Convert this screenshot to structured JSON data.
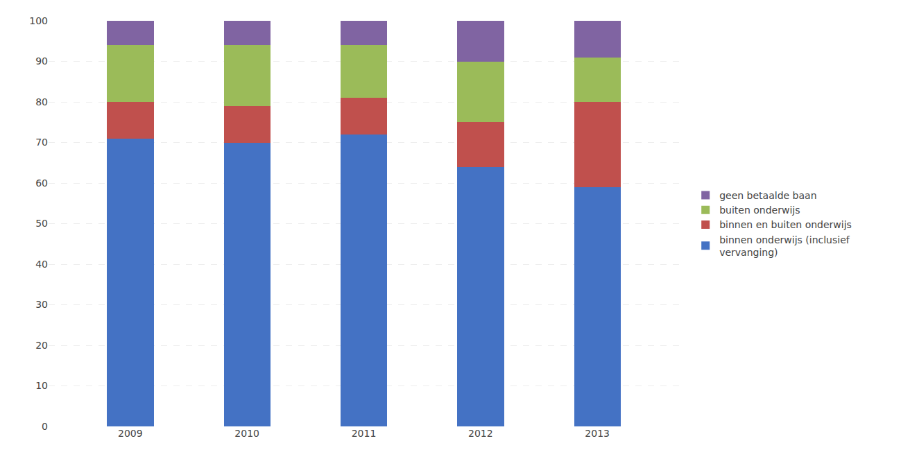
{
  "chart_data": {
    "type": "bar",
    "stacked": true,
    "categories": [
      "2009",
      "2010",
      "2011",
      "2012",
      "2013"
    ],
    "series": [
      {
        "name": "binnen onderwijs (inclusief\nvervanging)",
        "color": "#4472C4",
        "values": [
          71,
          70,
          72,
          64,
          59
        ]
      },
      {
        "name": "binnen en buiten onderwijs",
        "color": "#C0504D",
        "values": [
          9,
          9,
          9,
          11,
          21
        ]
      },
      {
        "name": "buiten onderwijs",
        "color": "#9BBB59",
        "values": [
          14,
          15,
          13,
          15,
          11
        ]
      },
      {
        "name": "geen betaalde baan",
        "color": "#8064A2",
        "values": [
          6,
          6,
          6,
          10,
          9
        ]
      }
    ],
    "ylim": [
      0,
      100
    ],
    "yticks": [
      0,
      10,
      20,
      30,
      40,
      50,
      60,
      70,
      80,
      90,
      100
    ],
    "grid": true,
    "legend": "right"
  }
}
